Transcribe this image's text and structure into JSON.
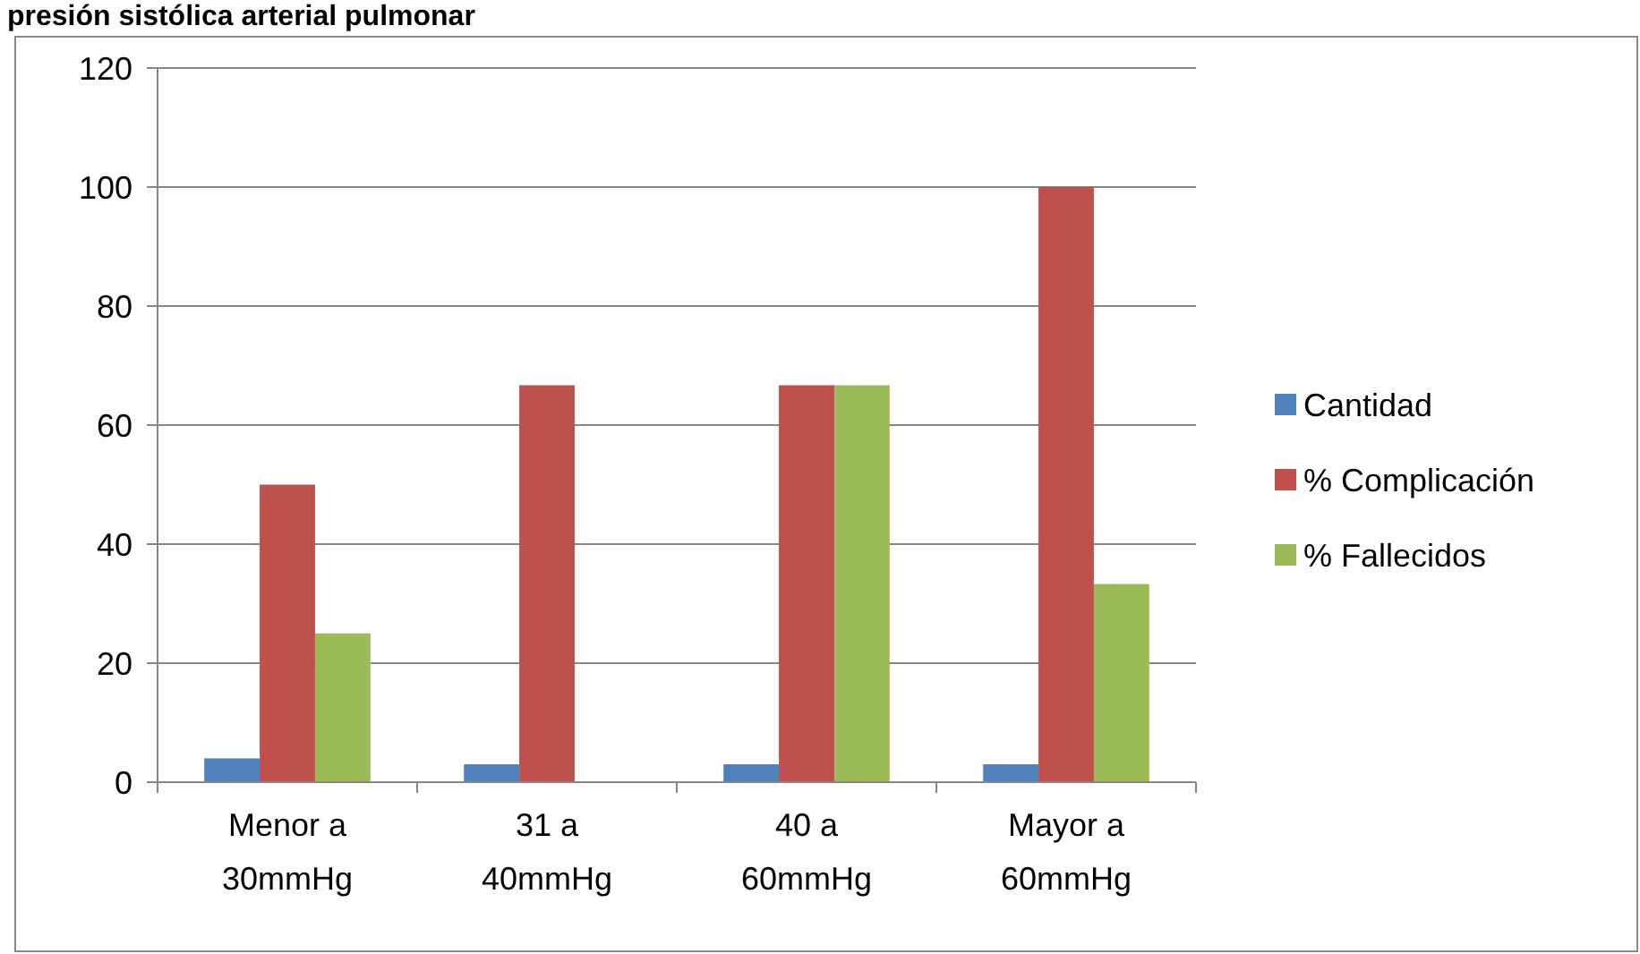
{
  "chart_data": {
    "type": "bar",
    "title": "presión sistólica arterial pulmonar",
    "categories": [
      "Menor a 30mmHg",
      "31 a 40mmHg",
      "40 a 60mmHg",
      "Mayor a 60mmHg"
    ],
    "series": [
      {
        "name": "Cantidad",
        "color": "#4f81bd",
        "values": [
          4,
          3,
          3,
          3
        ]
      },
      {
        "name": "% Complicación",
        "color": "#c0504d",
        "values": [
          50,
          66.7,
          66.7,
          100
        ]
      },
      {
        "name": "% Fallecidos",
        "color": "#9bbb59",
        "values": [
          25,
          0,
          66.7,
          33.3
        ]
      }
    ],
    "ylim": [
      0,
      120
    ],
    "yticks": [
      0,
      20,
      40,
      60,
      80,
      100,
      120
    ],
    "grid": "y",
    "legend": "right"
  }
}
